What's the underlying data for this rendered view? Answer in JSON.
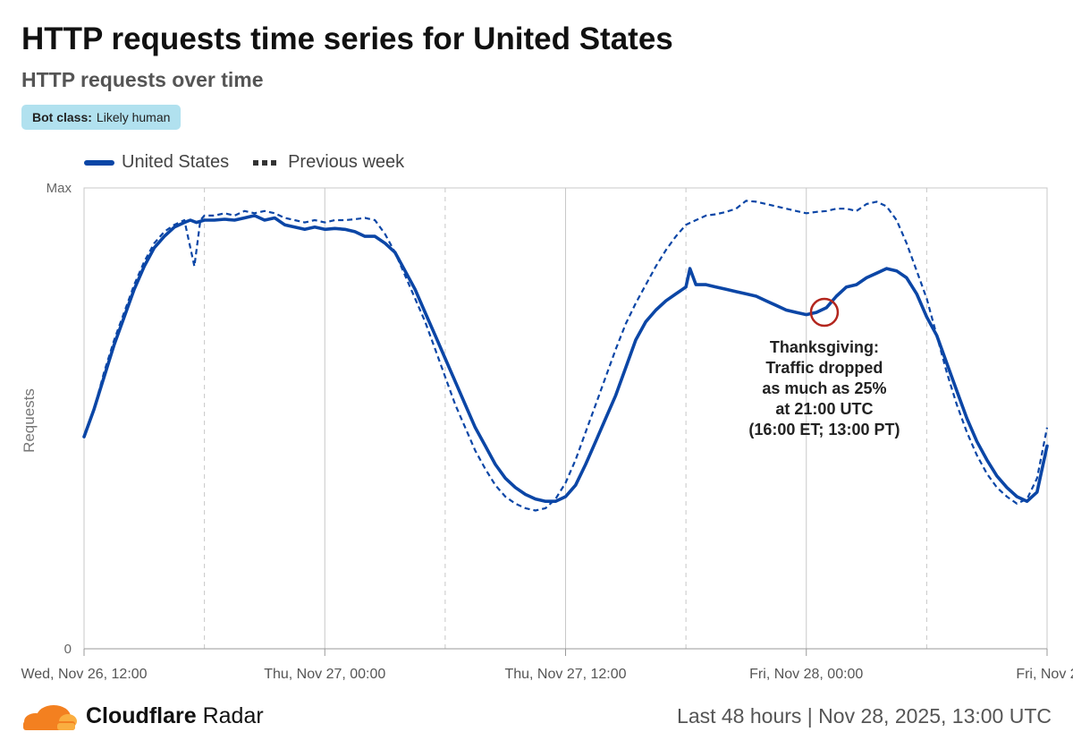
{
  "header": {
    "title": "HTTP requests time series for United States",
    "subtitle": "HTTP requests over time",
    "badge_key": "Bot class:",
    "badge_value": "Likely human"
  },
  "footer": {
    "brand_bold": "Cloudflare",
    "brand_rest": "Radar",
    "range": "Last 48 hours",
    "separator": "|",
    "timestamp": "Nov 28, 2025, 13:00 UTC"
  },
  "colors": {
    "series": "#0b46a6",
    "annotation_circle": "#b3261e",
    "grid": "#c8c8c8",
    "logo_orange": "#f38020",
    "logo_light": "#faae40"
  },
  "chart_data": {
    "type": "line",
    "title": "HTTP requests over time",
    "xlabel": "",
    "ylabel": "Requests",
    "x_range_hours": [
      0,
      48
    ],
    "ylim": [
      0,
      100
    ],
    "y_ticks": [
      "0",
      "Max"
    ],
    "x_ticks": [
      {
        "hour": 0,
        "label": "Wed, Nov 26, 12:00"
      },
      {
        "hour": 12,
        "label": "Thu, Nov 27, 00:00"
      },
      {
        "hour": 24,
        "label": "Thu, Nov 27, 12:00"
      },
      {
        "hour": 36,
        "label": "Fri, Nov 28, 00:00"
      },
      {
        "hour": 48,
        "label": "Fri, Nov 2"
      }
    ],
    "minor_grid_hours": [
      6,
      18,
      30,
      42
    ],
    "legend": "top-left",
    "series": [
      {
        "name": "United States",
        "style": "solid",
        "points": [
          [
            0,
            46
          ],
          [
            0.5,
            52
          ],
          [
            1,
            59
          ],
          [
            1.5,
            66
          ],
          [
            2,
            72
          ],
          [
            2.5,
            78
          ],
          [
            3,
            83
          ],
          [
            3.5,
            87
          ],
          [
            4,
            89.5
          ],
          [
            4.5,
            91.5
          ],
          [
            5,
            92.5
          ],
          [
            5.3,
            93
          ],
          [
            5.6,
            92.5
          ],
          [
            6,
            93
          ],
          [
            6.5,
            93
          ],
          [
            7,
            93.2
          ],
          [
            7.5,
            93
          ],
          [
            8,
            93.5
          ],
          [
            8.5,
            94
          ],
          [
            9,
            93
          ],
          [
            9.5,
            93.5
          ],
          [
            10,
            92
          ],
          [
            10.5,
            91.5
          ],
          [
            11,
            91
          ],
          [
            11.5,
            91.5
          ],
          [
            12,
            91
          ],
          [
            12.5,
            91.2
          ],
          [
            13,
            91
          ],
          [
            13.5,
            90.5
          ],
          [
            14,
            89.5
          ],
          [
            14.5,
            89.5
          ],
          [
            15,
            88
          ],
          [
            15.5,
            86
          ],
          [
            16,
            82
          ],
          [
            16.5,
            78
          ],
          [
            17,
            73
          ],
          [
            17.5,
            68
          ],
          [
            18,
            63
          ],
          [
            18.5,
            58
          ],
          [
            19,
            53
          ],
          [
            19.5,
            48
          ],
          [
            20,
            44
          ],
          [
            20.5,
            40
          ],
          [
            21,
            37
          ],
          [
            21.5,
            35
          ],
          [
            22,
            33.5
          ],
          [
            22.5,
            32.5
          ],
          [
            23,
            32
          ],
          [
            23.5,
            32
          ],
          [
            24,
            33
          ],
          [
            24.5,
            35.5
          ],
          [
            25,
            40
          ],
          [
            25.5,
            45
          ],
          [
            26,
            50
          ],
          [
            26.5,
            55
          ],
          [
            27,
            61
          ],
          [
            27.5,
            67
          ],
          [
            28,
            71
          ],
          [
            28.5,
            73.5
          ],
          [
            29,
            75.5
          ],
          [
            29.5,
            77
          ],
          [
            30,
            78.5
          ],
          [
            30.2,
            82.5
          ],
          [
            30.5,
            79
          ],
          [
            31,
            79
          ],
          [
            31.5,
            78.5
          ],
          [
            32,
            78
          ],
          [
            32.5,
            77.5
          ],
          [
            33,
            77
          ],
          [
            33.5,
            76.5
          ],
          [
            34,
            75.5
          ],
          [
            34.5,
            74.5
          ],
          [
            35,
            73.5
          ],
          [
            35.5,
            73
          ],
          [
            36,
            72.5
          ],
          [
            36.2,
            72.7
          ],
          [
            36.5,
            73
          ],
          [
            37,
            74
          ],
          [
            37.5,
            76.5
          ],
          [
            38,
            78.5
          ],
          [
            38.5,
            79
          ],
          [
            39,
            80.5
          ],
          [
            39.5,
            81.5
          ],
          [
            40,
            82.5
          ],
          [
            40.5,
            82
          ],
          [
            41,
            80.5
          ],
          [
            41.5,
            77
          ],
          [
            42,
            72
          ],
          [
            42.5,
            68
          ],
          [
            43,
            62
          ],
          [
            43.5,
            56
          ],
          [
            44,
            50
          ],
          [
            44.5,
            45
          ],
          [
            45,
            41
          ],
          [
            45.5,
            37.5
          ],
          [
            46,
            35
          ],
          [
            46.5,
            33
          ],
          [
            47,
            32
          ],
          [
            47.5,
            34
          ],
          [
            48,
            44
          ]
        ]
      },
      {
        "name": "Previous week",
        "style": "dashed",
        "points": [
          [
            0,
            46
          ],
          [
            0.5,
            52
          ],
          [
            1,
            60
          ],
          [
            1.5,
            67
          ],
          [
            2,
            73
          ],
          [
            2.5,
            79
          ],
          [
            3,
            84
          ],
          [
            3.5,
            88
          ],
          [
            4,
            90.5
          ],
          [
            4.5,
            92
          ],
          [
            5,
            93
          ],
          [
            5.5,
            83
          ],
          [
            5.8,
            93
          ],
          [
            6,
            94
          ],
          [
            6.5,
            94
          ],
          [
            7,
            94.5
          ],
          [
            7.5,
            94
          ],
          [
            8,
            95
          ],
          [
            8.5,
            94.5
          ],
          [
            9,
            95
          ],
          [
            9.5,
            94.5
          ],
          [
            10,
            93.5
          ],
          [
            10.5,
            93
          ],
          [
            11,
            92.5
          ],
          [
            11.5,
            93
          ],
          [
            12,
            92.5
          ],
          [
            12.5,
            93
          ],
          [
            13,
            93
          ],
          [
            13.5,
            93.2
          ],
          [
            14,
            93.5
          ],
          [
            14.5,
            93
          ],
          [
            15,
            90
          ],
          [
            15.5,
            86
          ],
          [
            16,
            81
          ],
          [
            16.5,
            76
          ],
          [
            17,
            71
          ],
          [
            17.5,
            65
          ],
          [
            18,
            59
          ],
          [
            18.5,
            53
          ],
          [
            19,
            48
          ],
          [
            19.5,
            43
          ],
          [
            20,
            39
          ],
          [
            20.5,
            35.5
          ],
          [
            21,
            33
          ],
          [
            21.5,
            31.5
          ],
          [
            22,
            30.5
          ],
          [
            22.5,
            30
          ],
          [
            23,
            30.5
          ],
          [
            23.5,
            32.5
          ],
          [
            24,
            36
          ],
          [
            24.5,
            41
          ],
          [
            25,
            47
          ],
          [
            25.5,
            53
          ],
          [
            26,
            59
          ],
          [
            26.5,
            65
          ],
          [
            27,
            70.5
          ],
          [
            27.5,
            75
          ],
          [
            28,
            79
          ],
          [
            28.5,
            83
          ],
          [
            29,
            86.5
          ],
          [
            29.5,
            89.5
          ],
          [
            30,
            92
          ],
          [
            30.5,
            93
          ],
          [
            31,
            94
          ],
          [
            31.5,
            94.3
          ],
          [
            32,
            94.8
          ],
          [
            32.5,
            95.5
          ],
          [
            33,
            97.2
          ],
          [
            33.5,
            97
          ],
          [
            34,
            96.5
          ],
          [
            34.5,
            96
          ],
          [
            35,
            95.5
          ],
          [
            35.5,
            95
          ],
          [
            36,
            94.5
          ],
          [
            36.5,
            94.8
          ],
          [
            37,
            95
          ],
          [
            37.5,
            95.5
          ],
          [
            38,
            95.5
          ],
          [
            38.5,
            95
          ],
          [
            39,
            96.5
          ],
          [
            39.5,
            97
          ],
          [
            40,
            96
          ],
          [
            40.5,
            93
          ],
          [
            41,
            88
          ],
          [
            41.5,
            82
          ],
          [
            42,
            76
          ],
          [
            42.5,
            68
          ],
          [
            43,
            60
          ],
          [
            43.5,
            53
          ],
          [
            44,
            47
          ],
          [
            44.5,
            42
          ],
          [
            45,
            38
          ],
          [
            45.5,
            35
          ],
          [
            46,
            33
          ],
          [
            46.5,
            31.5
          ],
          [
            47,
            32.5
          ],
          [
            47.5,
            37
          ],
          [
            48,
            48
          ]
        ]
      }
    ],
    "annotation": {
      "target_hour": 36.9,
      "target_value": 73,
      "lines": [
        "Thanksgiving:",
        "Traffic dropped",
        "as much as 25%",
        "at 21:00 UTC",
        "(16:00 ET; 13:00 PT)"
      ]
    }
  }
}
